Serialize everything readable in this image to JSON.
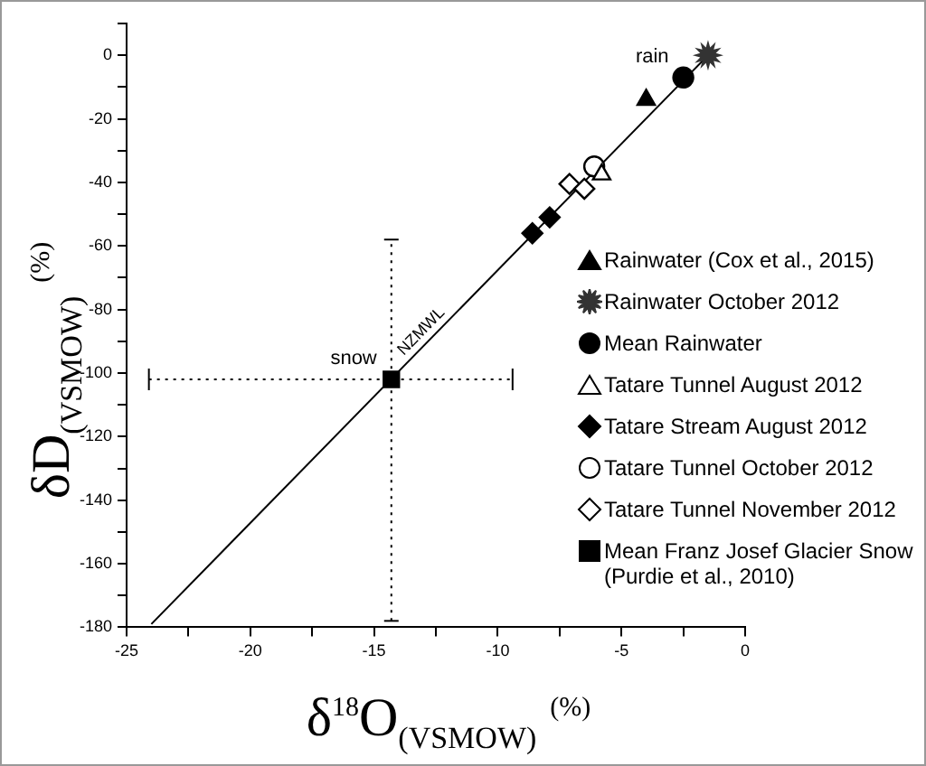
{
  "chart_data": {
    "type": "scatter",
    "xlabel": "δ$^{18}$O$_{(VSMOW)}$ $^{(%)}$",
    "ylabel": "δD$_{(VSMOW)}$ $^{(%)}$",
    "xlim": [
      -25,
      0
    ],
    "xticks": [
      -25,
      {
        "value": -22.5,
        "label": null
      },
      -20,
      {
        "value": -17.5,
        "label": null
      },
      -15,
      {
        "value": -12.5,
        "label": null
      },
      -10,
      {
        "value": -7.5,
        "label": null
      },
      -5,
      {
        "value": -2.5,
        "label": null
      },
      0
    ],
    "ylim": [
      -180,
      10
    ],
    "yticks": [
      -180,
      {
        "value": -170,
        "label": null
      },
      -160,
      {
        "value": -150,
        "label": null
      },
      -140,
      {
        "value": -130,
        "label": null
      },
      -120,
      {
        "value": -110,
        "label": null
      },
      -100,
      {
        "value": -90,
        "label": null
      },
      -80,
      {
        "value": -70,
        "label": null
      },
      -60,
      {
        "value": -50,
        "label": null
      },
      -40,
      {
        "value": -30,
        "label": null
      },
      -20,
      {
        "value": -10,
        "label": null
      },
      0,
      {
        "value": 10,
        "label": null
      }
    ],
    "grid": false,
    "legend": "right",
    "series": [
      {
        "type": "line",
        "name": "NZMWL",
        "color": "#000000",
        "x": [
          -24,
          -1.5
        ],
        "values": [
          -179,
          0
        ]
      },
      {
        "name": "Rainwater (Cox et al., 2015)",
        "color": "#000000",
        "marker": "triangle",
        "x": [
          -4.0
        ],
        "values": [
          -14
        ]
      },
      {
        "name": "Rainwater October 2012",
        "color": "#333333",
        "marker": "star",
        "x": [
          -1.5
        ],
        "values": [
          0
        ]
      },
      {
        "name": "Mean Rainwater",
        "color": "#000000",
        "marker": "circle",
        "x": [
          -2.5
        ],
        "values": [
          -7
        ]
      },
      {
        "name": "Tatare Tunnel August 2012",
        "color": "#ffffff",
        "marker": "triangle",
        "x": [
          -5.8
        ],
        "values": [
          -37.5
        ]
      },
      {
        "name": "Tatare Stream August 2012",
        "color": "#000000",
        "marker": "diamond",
        "x": [
          -8.6,
          -7.9
        ],
        "values": [
          -56,
          -51
        ]
      },
      {
        "name": "Tatare Tunnel October 2012",
        "color": "#ffffff",
        "marker": "circle",
        "x": [
          -6.1
        ],
        "values": [
          -35
        ]
      },
      {
        "name": "Tatare Tunnel November 2012",
        "color": "#ffffff",
        "marker": "diamond",
        "x": [
          -7.1,
          -6.5
        ],
        "values": [
          -40.5,
          -42
        ]
      },
      {
        "name": "Mean Franz Josef Glacier Snow (Purdie et al., 2010)",
        "color": "#000000",
        "marker": "square",
        "x": [
          -14.3
        ],
        "values": [
          -102
        ],
        "errors": [
          [
            -178,
            -58
          ]
        ],
        "xerrors": [
          [
            -24.1,
            -9.4
          ]
        ]
      }
    ],
    "annotations": [
      {
        "text": "rain",
        "x": -2.5,
        "y": -7
      },
      {
        "text": "snow",
        "x": -14.3,
        "y": -102
      }
    ]
  }
}
